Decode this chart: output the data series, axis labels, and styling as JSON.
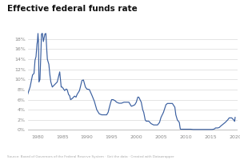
{
  "title": "Effective federal funds rate",
  "source_text": "Source: Board of Governors of the Federal Reserve System · Get the data · Created with Datawrapper",
  "line_color": "#3a5fa0",
  "background_color": "#ffffff",
  "grid_color": "#d9d9d9",
  "xlim": [
    1978,
    2020.5
  ],
  "ylim": [
    -0.4,
    20.5
  ],
  "yticks": [
    0,
    2,
    4,
    6,
    8,
    10,
    12,
    14,
    16,
    18
  ],
  "ytick_labels": [
    "0%",
    "2%",
    "4%",
    "6%",
    "8%",
    "10%",
    "12%",
    "14%",
    "16%",
    "18%"
  ],
  "xticks": [
    1980,
    1985,
    1990,
    1995,
    2000,
    2005,
    2010,
    2015,
    2020
  ],
  "data": [
    [
      1978.0,
      7.0
    ],
    [
      1978.5,
      8.5
    ],
    [
      1979.0,
      10.9
    ],
    [
      1979.3,
      11.2
    ],
    [
      1979.5,
      13.8
    ],
    [
      1979.7,
      14.5
    ],
    [
      1979.9,
      17.0
    ],
    [
      1980.0,
      17.6
    ],
    [
      1980.1,
      19.1
    ],
    [
      1980.2,
      17.5
    ],
    [
      1980.3,
      9.5
    ],
    [
      1980.5,
      10.0
    ],
    [
      1980.7,
      15.5
    ],
    [
      1980.8,
      18.9
    ],
    [
      1980.9,
      19.1
    ],
    [
      1981.0,
      19.1
    ],
    [
      1981.2,
      17.5
    ],
    [
      1981.5,
      19.0
    ],
    [
      1981.7,
      19.1
    ],
    [
      1981.9,
      15.5
    ],
    [
      1982.0,
      14.0
    ],
    [
      1982.3,
      13.0
    ],
    [
      1982.5,
      11.0
    ],
    [
      1982.7,
      9.5
    ],
    [
      1983.0,
      8.5
    ],
    [
      1983.5,
      9.0
    ],
    [
      1984.0,
      9.5
    ],
    [
      1984.5,
      11.5
    ],
    [
      1984.8,
      8.5
    ],
    [
      1985.0,
      8.5
    ],
    [
      1985.5,
      7.8
    ],
    [
      1985.8,
      8.1
    ],
    [
      1986.0,
      8.0
    ],
    [
      1986.3,
      7.0
    ],
    [
      1986.5,
      6.8
    ],
    [
      1986.7,
      6.0
    ],
    [
      1987.0,
      6.2
    ],
    [
      1987.5,
      6.7
    ],
    [
      1987.8,
      6.5
    ],
    [
      1988.0,
      7.0
    ],
    [
      1988.5,
      7.8
    ],
    [
      1989.0,
      9.8
    ],
    [
      1989.3,
      9.9
    ],
    [
      1989.7,
      8.5
    ],
    [
      1990.0,
      8.1
    ],
    [
      1990.5,
      8.0
    ],
    [
      1991.0,
      6.9
    ],
    [
      1991.5,
      5.7
    ],
    [
      1992.0,
      4.0
    ],
    [
      1992.5,
      3.2
    ],
    [
      1993.0,
      3.0
    ],
    [
      1993.5,
      3.0
    ],
    [
      1994.0,
      3.0
    ],
    [
      1994.3,
      3.5
    ],
    [
      1994.5,
      4.3
    ],
    [
      1994.8,
      5.4
    ],
    [
      1995.0,
      6.0
    ],
    [
      1995.3,
      6.0
    ],
    [
      1995.7,
      5.8
    ],
    [
      1996.0,
      5.5
    ],
    [
      1996.5,
      5.3
    ],
    [
      1997.0,
      5.3
    ],
    [
      1997.5,
      5.5
    ],
    [
      1998.0,
      5.5
    ],
    [
      1998.5,
      5.5
    ],
    [
      1998.8,
      5.0
    ],
    [
      1999.0,
      4.7
    ],
    [
      1999.3,
      4.8
    ],
    [
      1999.7,
      5.0
    ],
    [
      2000.0,
      5.5
    ],
    [
      2000.3,
      6.5
    ],
    [
      2000.5,
      6.5
    ],
    [
      2001.0,
      5.5
    ],
    [
      2001.3,
      4.0
    ],
    [
      2001.5,
      3.5
    ],
    [
      2001.8,
      2.0
    ],
    [
      2002.0,
      1.75
    ],
    [
      2002.5,
      1.75
    ],
    [
      2003.0,
      1.25
    ],
    [
      2003.5,
      1.0
    ],
    [
      2004.0,
      1.0
    ],
    [
      2004.3,
      1.0
    ],
    [
      2004.7,
      1.5
    ],
    [
      2005.0,
      2.5
    ],
    [
      2005.5,
      3.5
    ],
    [
      2006.0,
      5.0
    ],
    [
      2006.3,
      5.25
    ],
    [
      2006.7,
      5.25
    ],
    [
      2007.0,
      5.25
    ],
    [
      2007.3,
      5.25
    ],
    [
      2007.8,
      4.5
    ],
    [
      2008.0,
      3.0
    ],
    [
      2008.3,
      2.0
    ],
    [
      2008.7,
      1.5
    ],
    [
      2008.9,
      0.2
    ],
    [
      2009.0,
      0.15
    ],
    [
      2009.5,
      0.15
    ],
    [
      2010.0,
      0.15
    ],
    [
      2010.5,
      0.15
    ],
    [
      2011.0,
      0.15
    ],
    [
      2011.5,
      0.1
    ],
    [
      2012.0,
      0.1
    ],
    [
      2012.5,
      0.1
    ],
    [
      2013.0,
      0.1
    ],
    [
      2013.5,
      0.1
    ],
    [
      2014.0,
      0.1
    ],
    [
      2014.5,
      0.1
    ],
    [
      2015.0,
      0.1
    ],
    [
      2015.3,
      0.1
    ],
    [
      2015.5,
      0.12
    ],
    [
      2015.9,
      0.25
    ],
    [
      2016.0,
      0.4
    ],
    [
      2016.5,
      0.4
    ],
    [
      2016.8,
      0.5
    ],
    [
      2017.0,
      0.7
    ],
    [
      2017.5,
      1.1
    ],
    [
      2018.0,
      1.5
    ],
    [
      2018.5,
      2.0
    ],
    [
      2018.8,
      2.4
    ],
    [
      2019.0,
      2.4
    ],
    [
      2019.3,
      2.4
    ],
    [
      2019.7,
      2.0
    ],
    [
      2019.9,
      1.7
    ],
    [
      2020.0,
      2.5
    ]
  ]
}
